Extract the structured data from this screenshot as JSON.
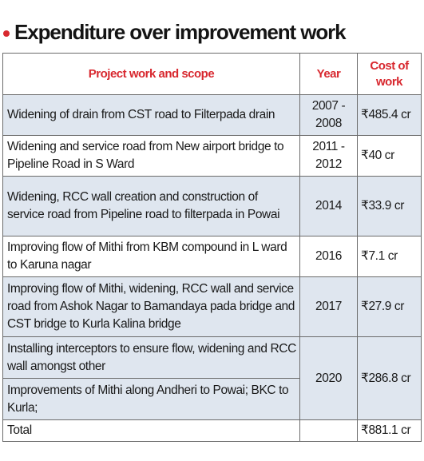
{
  "title": "Expenditure over improvement work",
  "accent_color": "#d8282f",
  "row_shade_color": "#dfe6ef",
  "headers": {
    "work": "Project work and scope",
    "year": "Year",
    "cost_line1": "Cost of",
    "cost_line2": "work"
  },
  "rows": [
    {
      "work": "Widening of drain from CST road to Filterpada drain",
      "year_line1": "2007 -",
      "year_line2": "2008",
      "cost": "₹485.4 cr"
    },
    {
      "work": "Widening and service road from New airport bridge to Pipeline Road in S Ward",
      "year_line1": "2011 -",
      "year_line2": "2012",
      "cost": "₹40 cr"
    },
    {
      "work": "Widening, RCC wall creation and construction of service road from Pipeline road to filterpada in Powai",
      "year": "2014",
      "cost": "₹33.9 cr"
    },
    {
      "work": "Improving flow of Mithi from KBM compound in L ward to Karuna nagar",
      "year": "2016",
      "cost": "₹7.1 cr"
    },
    {
      "work": "Improving flow of Mithi, widening, RCC wall and service road from Ashok Nagar to Bamandaya pada bridge and CST bridge to Kurla Kalina bridge",
      "year": "2017",
      "cost": "₹27.9 cr"
    },
    {
      "work": "Installing interceptors to ensure flow, widening and RCC wall amongst other",
      "year": "2020",
      "cost": "₹286.8 cr"
    },
    {
      "work": "Improvements of Mithi along Andheri to Powai; BKC to Kurla;"
    }
  ],
  "total": {
    "label": "Total",
    "cost": "₹881.1 cr"
  }
}
